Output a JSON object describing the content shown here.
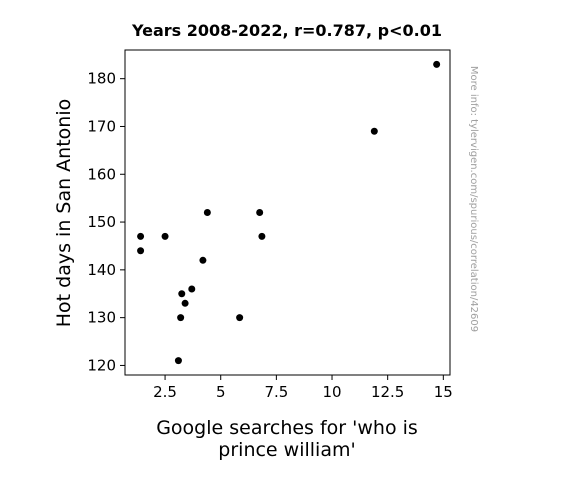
{
  "chart_data": {
    "type": "scatter",
    "title": "Years 2008-2022, r=0.787, p<0.01",
    "xlabel_lines": [
      "Google searches for 'who is",
      "prince william'"
    ],
    "ylabel": "Hot days in San Antonio",
    "xlim": [
      0.7,
      15.3
    ],
    "ylim": [
      118,
      186
    ],
    "x_ticks": [
      2.5,
      5,
      7.5,
      10,
      12.5,
      15
    ],
    "x_tick_labels": [
      "2.5",
      "5",
      "7.5",
      "10",
      "12.5",
      "15"
    ],
    "y_ticks": [
      120,
      130,
      140,
      150,
      160,
      170,
      180
    ],
    "y_tick_labels": [
      "120",
      "130",
      "140",
      "150",
      "160",
      "170",
      "180"
    ],
    "grid": false,
    "points": [
      {
        "x": 1.4,
        "y": 147
      },
      {
        "x": 1.4,
        "y": 144
      },
      {
        "x": 2.5,
        "y": 147
      },
      {
        "x": 3.1,
        "y": 121
      },
      {
        "x": 3.2,
        "y": 130
      },
      {
        "x": 3.25,
        "y": 135
      },
      {
        "x": 3.4,
        "y": 133
      },
      {
        "x": 3.7,
        "y": 136
      },
      {
        "x": 4.2,
        "y": 142
      },
      {
        "x": 4.4,
        "y": 152
      },
      {
        "x": 5.85,
        "y": 130
      },
      {
        "x": 6.75,
        "y": 152
      },
      {
        "x": 6.85,
        "y": 147
      },
      {
        "x": 11.9,
        "y": 169
      },
      {
        "x": 14.7,
        "y": 183
      }
    ],
    "point_color": "#000000"
  },
  "side_note": "More info: tylervigen.com/spurious/correlation/42609"
}
